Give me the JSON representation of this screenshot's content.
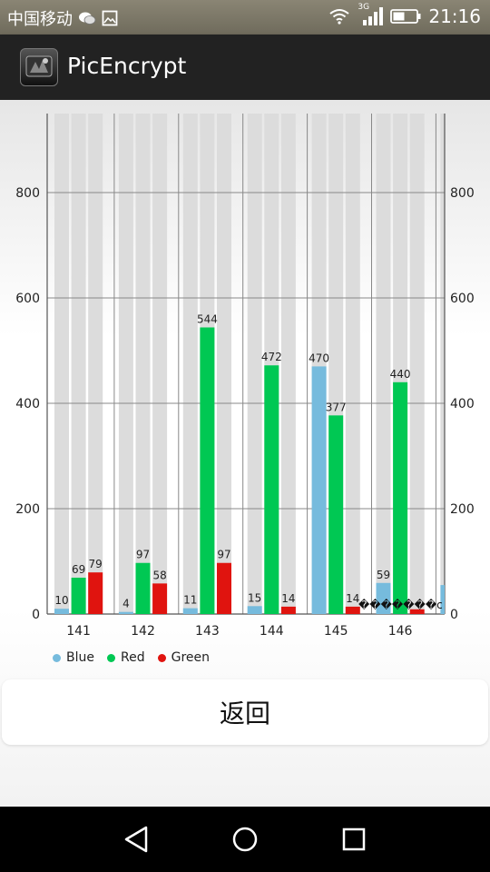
{
  "status_bar": {
    "carrier": "中国移动",
    "network": "3G",
    "time": "21:16"
  },
  "app_bar": {
    "title": "PicEncrypt",
    "icon": "app-logo-icon"
  },
  "chart_data": {
    "type": "bar",
    "categories": [
      "141",
      "142",
      "143",
      "144",
      "145",
      "146"
    ],
    "series": [
      {
        "name": "Blue",
        "color": "#76bbdd",
        "values": [
          10,
          4,
          11,
          15,
          470,
          59
        ]
      },
      {
        "name": "Red",
        "color": "#00c853",
        "values": [
          69,
          97,
          544,
          472,
          377,
          440
        ]
      },
      {
        "name": "Green",
        "color": "#e0140f",
        "values": [
          79,
          58,
          97,
          14,
          14,
          9
        ]
      }
    ],
    "partial_next_blue_value": 55,
    "overlap_label": "�������c",
    "ylim": [
      0,
      950
    ],
    "y_ticks": [
      "0",
      "200",
      "400",
      "600",
      "800"
    ],
    "grid": true,
    "legend_position": "bottom-left"
  },
  "back_button": {
    "label": "返回"
  },
  "nav_bar": {
    "back": "back-triangle-icon",
    "home": "home-circle-icon",
    "recents": "recents-square-icon"
  }
}
